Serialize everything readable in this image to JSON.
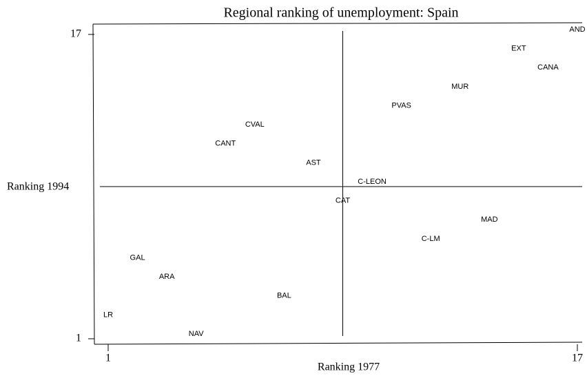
{
  "chart_data": {
    "type": "scatter",
    "title": "Regional ranking of unemployment: Spain",
    "x_label": "Ranking 1977",
    "y_label": "Ranking 1994",
    "point_labels": [
      "AND",
      "EXT",
      "CANA",
      "MUR",
      "PVAS",
      "CVAL",
      "CANT",
      "AST",
      "C-LEON",
      "CAT",
      "MAD",
      "C-LM",
      "GAL",
      "ARA",
      "BAL",
      "LR",
      "NAV"
    ],
    "x": [
      17,
      15,
      16,
      13,
      11,
      6,
      5,
      8,
      10,
      9,
      14,
      12,
      2,
      3,
      7,
      1,
      4
    ],
    "values": [
      17,
      16,
      15,
      14,
      13,
      12,
      11,
      10,
      9,
      8,
      7,
      6,
      5,
      4,
      3,
      2,
      1
    ],
    "xlim": [
      1,
      17
    ],
    "ylim": [
      1,
      17
    ],
    "xticks": [
      1,
      17
    ],
    "yticks": [
      1,
      17
    ],
    "xline": 9,
    "yline": 9,
    "color": "#000000"
  }
}
